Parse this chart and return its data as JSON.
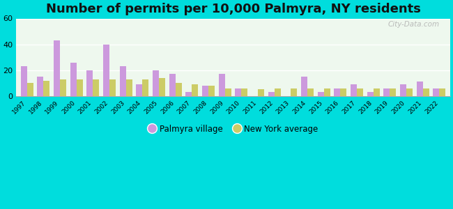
{
  "title": "Number of permits per 10,000 Palmyra, NY residents",
  "years": [
    1997,
    1998,
    1999,
    2000,
    2001,
    2002,
    2003,
    2004,
    2005,
    2006,
    2007,
    2008,
    2009,
    2010,
    2011,
    2012,
    2013,
    2014,
    2015,
    2016,
    2017,
    2018,
    2019,
    2020,
    2021,
    2022
  ],
  "palmyra": [
    23,
    15,
    43,
    26,
    20,
    40,
    23,
    9,
    20,
    17,
    3,
    8,
    17,
    6,
    0,
    3,
    0,
    15,
    3,
    6,
    9,
    3,
    6,
    9,
    11,
    6
  ],
  "ny_avg": [
    10,
    12,
    13,
    13,
    13,
    13,
    13,
    13,
    14,
    10,
    9,
    8,
    6,
    6,
    5,
    6,
    6,
    6,
    6,
    6,
    6,
    6,
    6,
    6,
    6,
    6
  ],
  "palmyra_color": "#cc99dd",
  "ny_avg_color": "#cccc66",
  "background_outer": "#00dddd",
  "ylim": [
    0,
    60
  ],
  "yticks": [
    0,
    20,
    40,
    60
  ],
  "title_fontsize": 13,
  "legend_label_palmyra": "Palmyra village",
  "legend_label_ny": "New York average",
  "bar_width": 0.38
}
